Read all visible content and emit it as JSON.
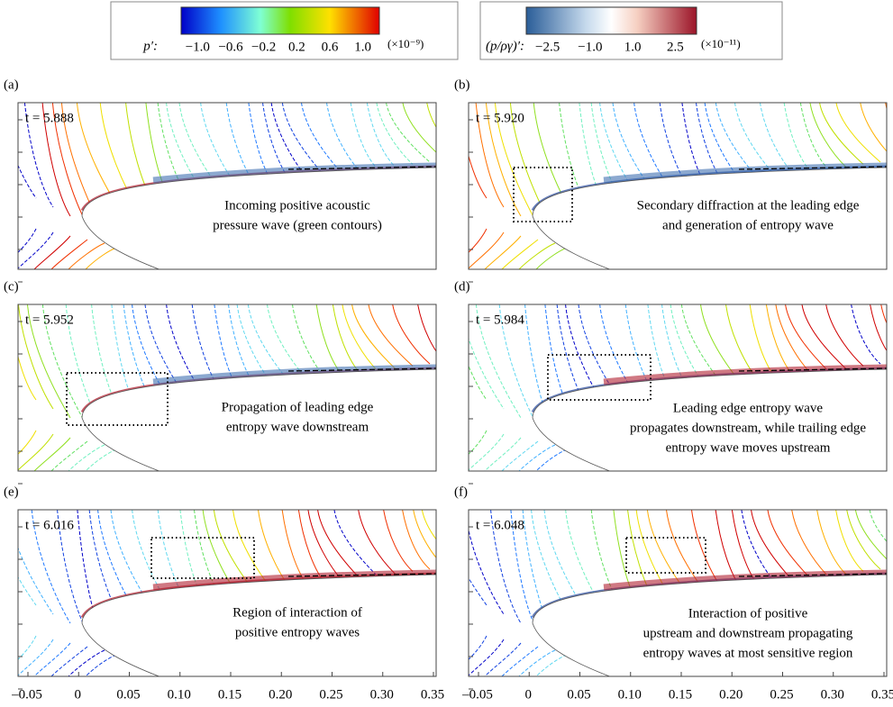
{
  "colorbars": [
    {
      "label": "p′:",
      "ticks": [
        "−1.0",
        "−0.6",
        "−0.2",
        "0.2",
        "0.6",
        "1.0"
      ],
      "exponent": "(×10⁻⁹)"
    },
    {
      "label": "(p/ργ)′:",
      "ticks": [
        "−2.5",
        "−1.0",
        "1.0",
        "2.5"
      ],
      "exponent": "(×10⁻¹¹)"
    }
  ],
  "panels": [
    {
      "label": "(a)",
      "time": "t = 5.888",
      "annotation": [
        "Incoming positive acoustic",
        "pressure wave (green contours)"
      ]
    },
    {
      "label": "(b)",
      "time": "t = 5.920",
      "annotation": [
        "Secondary diffraction at the leading edge",
        "and generation of entropy wave"
      ]
    },
    {
      "label": "(c)",
      "time": "t = 5.952",
      "annotation": [
        "Propagation of leading edge",
        "entropy wave downstream"
      ]
    },
    {
      "label": "(d)",
      "time": "t = 5.984",
      "annotation": [
        "Leading edge entropy wave",
        "propagates downstream, while trailing edge",
        "entropy wave moves upstream"
      ]
    },
    {
      "label": "(e)",
      "time": "t = 6.016",
      "annotation": [
        "Region of interaction of",
        "positive entropy waves"
      ]
    },
    {
      "label": "(f)",
      "time": "t = 6.048",
      "annotation": [
        "Interaction of positive",
        "upstream and downstream propagating",
        "entropy waves at most sensitive region"
      ]
    }
  ],
  "x_ticks": [
    "–0.05",
    "0",
    "0.05",
    "0.10",
    "0.15",
    "0.20",
    "0.25",
    "0.30",
    "0.35"
  ]
}
